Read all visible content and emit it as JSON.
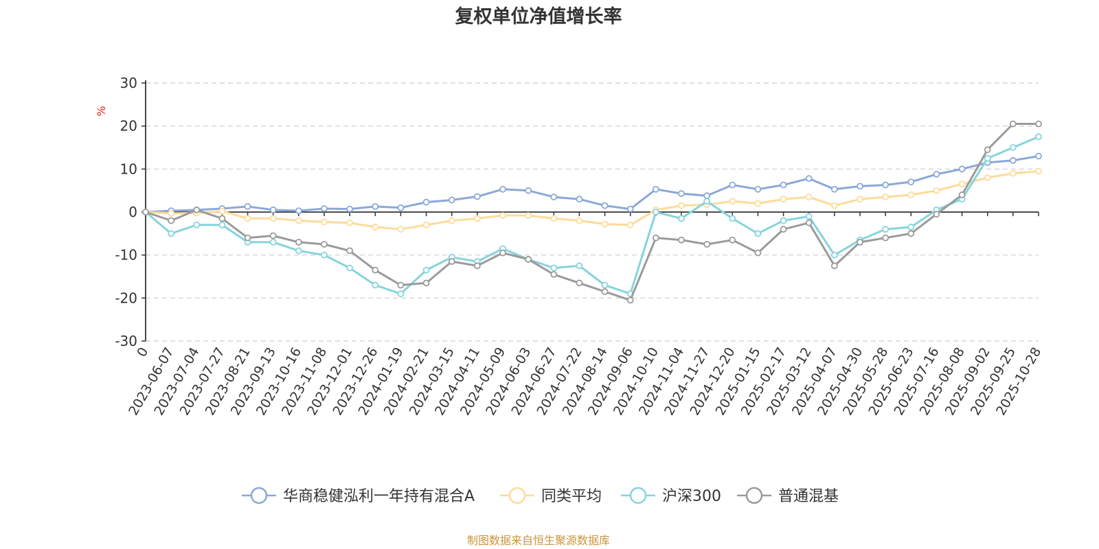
{
  "chart_data": {
    "type": "line",
    "title": "复权单位净值增长率",
    "ylabel": "%",
    "xlabel": "",
    "ylim": [
      -30,
      30
    ],
    "yticks": [
      30,
      20,
      10,
      0,
      -10,
      -20,
      -30
    ],
    "grid": true,
    "legend_position": "bottom-center",
    "categories": [
      "0",
      "2023-06-07",
      "2023-07-04",
      "2023-07-27",
      "2023-08-21",
      "2023-09-13",
      "2023-10-16",
      "2023-11-08",
      "2023-12-01",
      "2023-12-26",
      "2024-01-19",
      "2024-02-21",
      "2024-03-15",
      "2024-04-11",
      "2024-05-09",
      "2024-06-03",
      "2024-06-27",
      "2024-07-22",
      "2024-08-14",
      "2024-09-06",
      "2024-10-10",
      "2024-11-04",
      "2024-11-27",
      "2024-12-20",
      "2025-01-15",
      "2025-02-17",
      "2025-03-12",
      "2025-04-07",
      "2025-04-30",
      "2025-05-28",
      "2025-06-23",
      "2025-07-16",
      "2025-08-08",
      "2025-09-02",
      "2025-09-25",
      "2025-10-28"
    ],
    "series": [
      {
        "name": "华商稳健泓利一年持有混合A",
        "color": "#8aa8d8",
        "values": [
          0,
          0.3,
          0.5,
          0.8,
          1.3,
          0.5,
          0.3,
          0.8,
          0.7,
          1.3,
          1.0,
          2.3,
          2.8,
          3.6,
          5.3,
          5.0,
          3.5,
          3.0,
          1.5,
          0.7,
          5.3,
          4.3,
          3.8,
          6.3,
          5.3,
          6.3,
          7.8,
          5.3,
          6.0,
          6.3,
          7.0,
          8.8,
          10.0,
          11.5,
          12.0,
          13.0
        ]
      },
      {
        "name": "同类平均",
        "color": "#fddb9a",
        "values": [
          0,
          -0.3,
          -0.2,
          0.2,
          -1.5,
          -1.5,
          -2.0,
          -2.3,
          -2.5,
          -3.5,
          -4.0,
          -3.0,
          -2.0,
          -1.5,
          -0.8,
          -0.8,
          -1.5,
          -2.0,
          -2.8,
          -3.0,
          0.5,
          1.5,
          1.7,
          2.5,
          2.0,
          3.0,
          3.5,
          1.5,
          3.0,
          3.5,
          4.0,
          5.0,
          6.5,
          8.0,
          9.0,
          9.5
        ]
      },
      {
        "name": "沪深300",
        "color": "#86d4dc",
        "values": [
          0,
          -5.0,
          -3.0,
          -3.0,
          -7.0,
          -7.0,
          -9.0,
          -10.0,
          -13.0,
          -17.0,
          -19.0,
          -13.5,
          -10.5,
          -11.5,
          -8.5,
          -11.0,
          -13.0,
          -12.5,
          -17.0,
          -19.0,
          0,
          -1.5,
          2.5,
          -1.5,
          -5.0,
          -2.0,
          -1.0,
          -10.0,
          -6.5,
          -4.0,
          -3.5,
          0.5,
          3.0,
          12.5,
          15.0,
          17.5
        ]
      },
      {
        "name": "普通混基",
        "color": "#9a9a9a",
        "values": [
          0,
          -2.0,
          0.5,
          -1.5,
          -6.0,
          -5.5,
          -7.0,
          -7.5,
          -9.0,
          -13.5,
          -17.0,
          -16.5,
          -11.5,
          -12.5,
          -9.5,
          -11.0,
          -14.5,
          -16.5,
          -18.5,
          -20.5,
          -6.0,
          -6.5,
          -7.5,
          -6.5,
          -9.5,
          -4.0,
          -2.5,
          -12.5,
          -7.0,
          -6.0,
          -5.0,
          -0.5,
          4.0,
          14.5,
          20.5,
          20.5
        ]
      }
    ]
  },
  "source_text": "制图数据来自恒生聚源数据库",
  "source_color": "#c8963c"
}
